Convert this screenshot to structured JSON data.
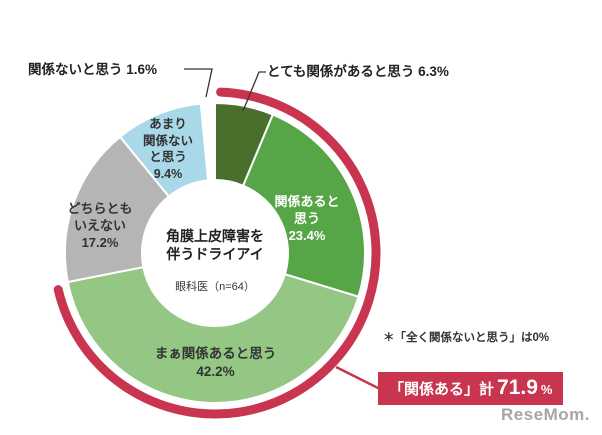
{
  "chart_data": {
    "type": "pie",
    "donut": true,
    "start_angle_deg": 0,
    "direction": "clockwise",
    "center_title": "角膜上皮障害を\n伴うドライアイ",
    "center_subtitle": "眼科医（n=64）",
    "segments": [
      {
        "label": "とても関係があると思う",
        "value": 6.3,
        "color": "#4a6f2d"
      },
      {
        "label": "関係あると思う",
        "value": 23.4,
        "color": "#56a546"
      },
      {
        "label": "まぁ関係あると思う",
        "value": 42.2,
        "color": "#93c783"
      },
      {
        "label": "どちらともいえない",
        "value": 17.2,
        "color": "#b5b5b5"
      },
      {
        "label": "あまり関係ないと思う",
        "value": 9.4,
        "color": "#a9d8e8"
      },
      {
        "label": "関係ないと思う",
        "value": 1.6,
        "color": "#ffffff"
      },
      {
        "label": "全く関係ないと思う",
        "value": 0,
        "color": "#ffffff"
      }
    ],
    "highlight": {
      "label": "「関係ある」計",
      "value": "71.9",
      "unit": "%",
      "covers_pct": 71.9,
      "color": "#c9344f"
    },
    "footnote": "＊「全く関係ないと思う」は0%"
  },
  "labels": {
    "callout_none": "関係ないと思う 1.6%",
    "callout_very": "とても関係があると思う 6.3%",
    "segment_not_much": "あまり\n関係ない\nと思う\n9.4%",
    "segment_neither": "どちらとも\nいえない\n17.2%",
    "segment_related": "関係あると\n思う\n23.4%",
    "segment_somewhat": "まぁ関係あると思う\n42.2%"
  },
  "watermark": "ReseMom."
}
